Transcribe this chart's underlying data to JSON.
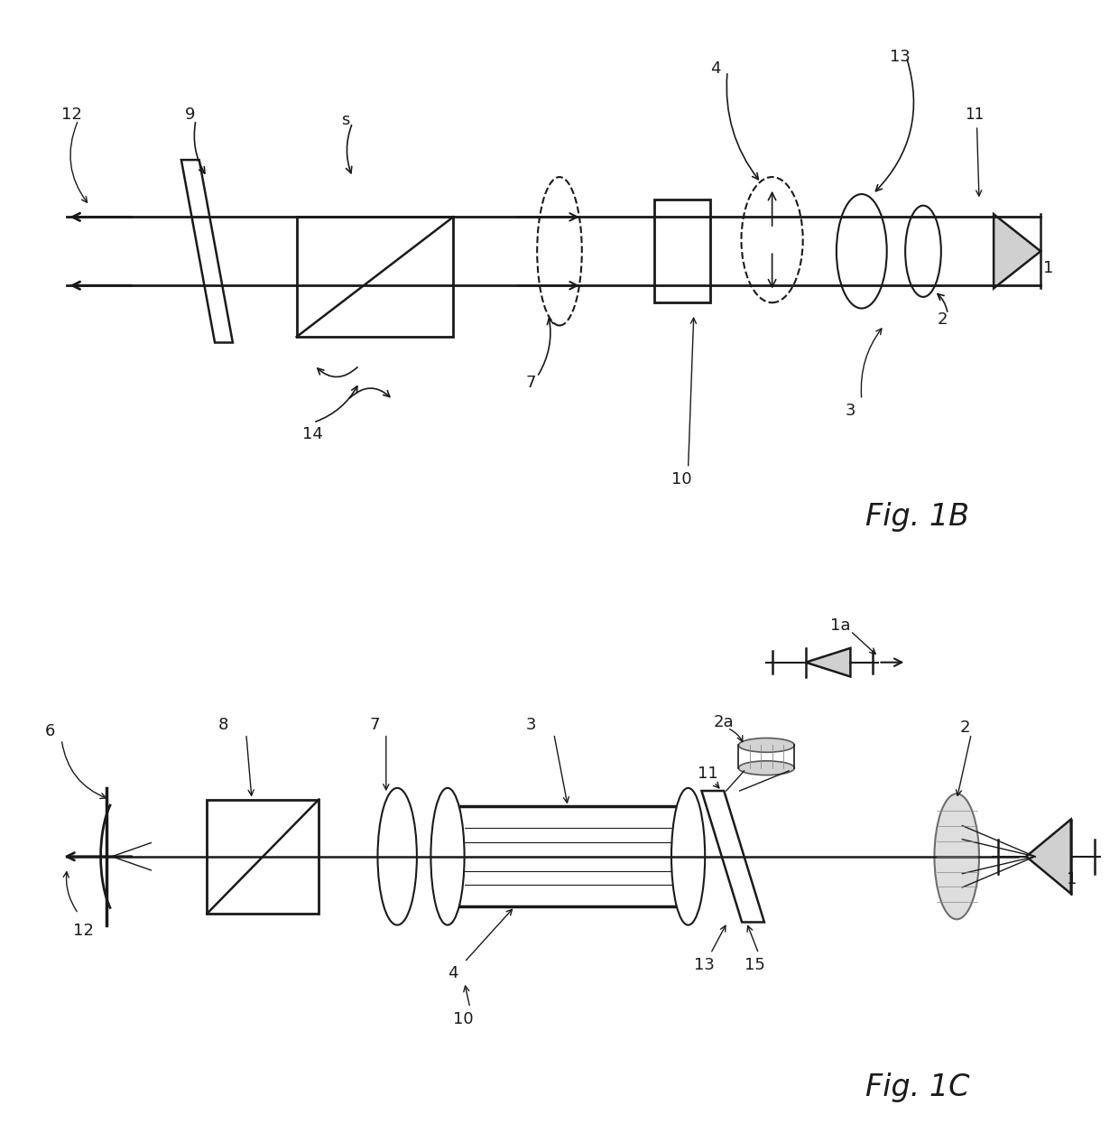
{
  "background": "#ffffff",
  "line_color": "#1a1a1a",
  "fig1b_title": "Fig. 1B",
  "fig1c_title": "Fig. 1C",
  "title_fontsize": 24
}
